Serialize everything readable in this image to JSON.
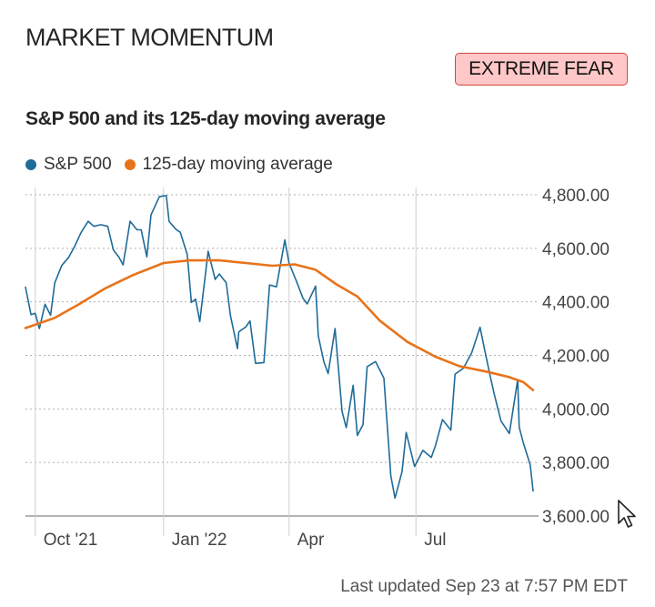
{
  "header": {
    "section_title": "MARKET MOMENTUM",
    "sentiment_badge": "EXTREME FEAR"
  },
  "colors": {
    "sp500": "#1f6b99",
    "moving_average": "#e8731a",
    "badge_background": "#ffc7c7",
    "badge_border": "#d64545",
    "grid": "#b0b0b0"
  },
  "chart_data": {
    "type": "line",
    "title": "S&P 500 and its 125-day moving average",
    "legend_position": "top-left",
    "grid": true,
    "x_type": "date",
    "xlim": [
      "2021-09-24",
      "2022-09-23"
    ],
    "ylim": [
      3600,
      4800
    ],
    "y_ticks": [
      "4,800.00",
      "4,600.00",
      "4,400.00",
      "4,200.00",
      "4,000.00",
      "3,800.00",
      "3,600.00"
    ],
    "x_ticks": [
      {
        "date": "2021-10-01",
        "label": "Oct '21"
      },
      {
        "date": "2022-01-01",
        "label": "Jan '22"
      },
      {
        "date": "2022-04-01",
        "label": "Apr"
      },
      {
        "date": "2022-07-01",
        "label": "Jul"
      }
    ],
    "series": [
      {
        "name": "S&P 500",
        "color": "#1f6b99",
        "points": [
          [
            "2021-09-24",
            4455
          ],
          [
            "2021-09-28",
            4352
          ],
          [
            "2021-10-01",
            4357
          ],
          [
            "2021-10-04",
            4300
          ],
          [
            "2021-10-08",
            4391
          ],
          [
            "2021-10-12",
            4350
          ],
          [
            "2021-10-15",
            4471
          ],
          [
            "2021-10-20",
            4536
          ],
          [
            "2021-10-25",
            4566
          ],
          [
            "2021-10-29",
            4605
          ],
          [
            "2021-11-03",
            4660
          ],
          [
            "2021-11-08",
            4701
          ],
          [
            "2021-11-12",
            4682
          ],
          [
            "2021-11-17",
            4688
          ],
          [
            "2021-11-22",
            4682
          ],
          [
            "2021-11-26",
            4594
          ],
          [
            "2021-11-30",
            4567
          ],
          [
            "2021-12-03",
            4538
          ],
          [
            "2021-12-08",
            4701
          ],
          [
            "2021-12-13",
            4669
          ],
          [
            "2021-12-16",
            4669
          ],
          [
            "2021-12-20",
            4568
          ],
          [
            "2021-12-23",
            4725
          ],
          [
            "2021-12-29",
            4793
          ],
          [
            "2022-01-03",
            4797
          ],
          [
            "2022-01-05",
            4700
          ],
          [
            "2022-01-10",
            4670
          ],
          [
            "2022-01-13",
            4660
          ],
          [
            "2022-01-18",
            4577
          ],
          [
            "2022-01-21",
            4398
          ],
          [
            "2022-01-24",
            4410
          ],
          [
            "2022-01-27",
            4326
          ],
          [
            "2022-02-02",
            4589
          ],
          [
            "2022-02-07",
            4484
          ],
          [
            "2022-02-10",
            4504
          ],
          [
            "2022-02-15",
            4471
          ],
          [
            "2022-02-18",
            4349
          ],
          [
            "2022-02-23",
            4225
          ],
          [
            "2022-02-24",
            4288
          ],
          [
            "2022-03-01",
            4306
          ],
          [
            "2022-03-04",
            4329
          ],
          [
            "2022-03-08",
            4170
          ],
          [
            "2022-03-14",
            4173
          ],
          [
            "2022-03-18",
            4463
          ],
          [
            "2022-03-23",
            4456
          ],
          [
            "2022-03-29",
            4631
          ],
          [
            "2022-04-01",
            4545
          ],
          [
            "2022-04-06",
            4481
          ],
          [
            "2022-04-11",
            4413
          ],
          [
            "2022-04-14",
            4392
          ],
          [
            "2022-04-20",
            4459
          ],
          [
            "2022-04-22",
            4272
          ],
          [
            "2022-04-26",
            4175
          ],
          [
            "2022-04-29",
            4132
          ],
          [
            "2022-05-04",
            4300
          ],
          [
            "2022-05-09",
            3991
          ],
          [
            "2022-05-12",
            3930
          ],
          [
            "2022-05-17",
            4088
          ],
          [
            "2022-05-20",
            3901
          ],
          [
            "2022-05-24",
            3941
          ],
          [
            "2022-05-27",
            4158
          ],
          [
            "2022-06-02",
            4177
          ],
          [
            "2022-06-08",
            4115
          ],
          [
            "2022-06-13",
            3750
          ],
          [
            "2022-06-16",
            3667
          ],
          [
            "2022-06-21",
            3765
          ],
          [
            "2022-06-24",
            3912
          ],
          [
            "2022-06-30",
            3785
          ],
          [
            "2022-07-06",
            3845
          ],
          [
            "2022-07-12",
            3819
          ],
          [
            "2022-07-15",
            3863
          ],
          [
            "2022-07-20",
            3960
          ],
          [
            "2022-07-26",
            3921
          ],
          [
            "2022-07-29",
            4130
          ],
          [
            "2022-08-04",
            4152
          ],
          [
            "2022-08-10",
            4210
          ],
          [
            "2022-08-16",
            4305
          ],
          [
            "2022-08-19",
            4228
          ],
          [
            "2022-08-23",
            4128
          ],
          [
            "2022-08-26",
            4058
          ],
          [
            "2022-08-31",
            3955
          ],
          [
            "2022-09-06",
            3908
          ],
          [
            "2022-09-12",
            4110
          ],
          [
            "2022-09-13",
            3932
          ],
          [
            "2022-09-16",
            3873
          ],
          [
            "2022-09-21",
            3790
          ],
          [
            "2022-09-23",
            3693
          ]
        ]
      },
      {
        "name": "125-day moving average",
        "color": "#e8731a",
        "points": [
          [
            "2021-09-24",
            4302
          ],
          [
            "2021-10-15",
            4340
          ],
          [
            "2021-11-01",
            4390
          ],
          [
            "2021-11-20",
            4450
          ],
          [
            "2021-12-10",
            4500
          ],
          [
            "2022-01-01",
            4545
          ],
          [
            "2022-01-20",
            4555
          ],
          [
            "2022-02-10",
            4555
          ],
          [
            "2022-03-01",
            4545
          ],
          [
            "2022-03-20",
            4535
          ],
          [
            "2022-04-05",
            4540
          ],
          [
            "2022-04-20",
            4520
          ],
          [
            "2022-05-05",
            4465
          ],
          [
            "2022-05-20",
            4420
          ],
          [
            "2022-06-05",
            4330
          ],
          [
            "2022-06-25",
            4250
          ],
          [
            "2022-07-15",
            4195
          ],
          [
            "2022-08-01",
            4160
          ],
          [
            "2022-08-20",
            4140
          ],
          [
            "2022-09-05",
            4120
          ],
          [
            "2022-09-16",
            4100
          ],
          [
            "2022-09-23",
            4070
          ]
        ]
      }
    ]
  },
  "footer": {
    "last_updated": "Last updated Sep 23 at 7:57 PM EDT"
  }
}
